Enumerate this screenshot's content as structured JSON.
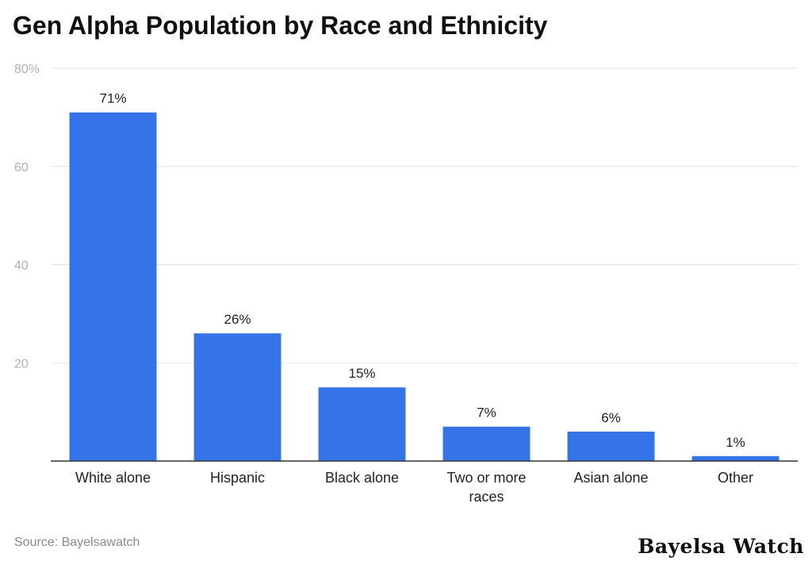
{
  "chart_data": {
    "type": "bar",
    "title": "Gen Alpha Population by Race and Ethnicity",
    "categories": [
      [
        "White alone"
      ],
      [
        "Hispanic"
      ],
      [
        "Black alone"
      ],
      [
        "Two or more",
        "races"
      ],
      [
        "Asian alone"
      ],
      [
        "Other"
      ]
    ],
    "values": [
      71,
      26,
      15,
      7,
      6,
      1
    ],
    "data_labels": [
      "71%",
      "26%",
      "15%",
      "7%",
      "6%",
      "1%"
    ],
    "ylim": [
      0,
      80
    ],
    "y_ticks": [
      20,
      40,
      60,
      80
    ],
    "y_tick_labels": [
      "20",
      "40",
      "60",
      "80%"
    ],
    "grid": true,
    "bar_color": "#3474e8",
    "xlabel": "",
    "ylabel": ""
  },
  "source": "Source: Bayelsawatch",
  "brand": "Bayelsa Watch"
}
